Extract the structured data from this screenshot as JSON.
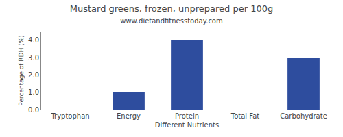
{
  "chart_data": {
    "type": "bar",
    "title": "Mustard greens, frozen, unprepared per 100g",
    "subtitle": "www.dietandfitnesstoday.com",
    "xlabel": "Different Nutrients",
    "ylabel": "Percentage of RDH (%)",
    "categories": [
      "Tryptophan",
      "Energy",
      "Protein",
      "Total Fat",
      "Carbohydrate"
    ],
    "values": [
      0.0,
      1.0,
      4.0,
      0.0,
      3.0
    ],
    "color": "#2e4d9e",
    "ylim": [
      0,
      4.5
    ],
    "yticks": [
      {
        "value": 0,
        "label": "0.0"
      },
      {
        "value": 1,
        "label": "1.0"
      },
      {
        "value": 2,
        "label": "2.0"
      },
      {
        "value": 3,
        "label": "3.0"
      },
      {
        "value": 4,
        "label": "4.0"
      }
    ],
    "grid": true
  }
}
